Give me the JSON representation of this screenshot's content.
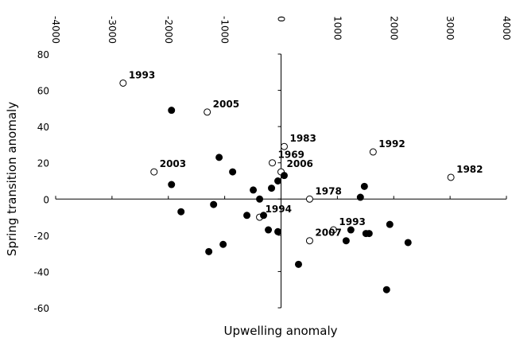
{
  "chart_data": {
    "type": "scatter",
    "x_label": "Upwelling anomaly",
    "y_label": "Spring transition anomaly",
    "xlim": [
      -4000,
      4000
    ],
    "xticks": [
      -4000,
      -3000,
      -2000,
      -1000,
      0,
      1000,
      2000,
      3000,
      4000
    ],
    "ylim": [
      -60,
      80
    ],
    "yticks": [
      -60,
      -40,
      -20,
      0,
      20,
      40,
      60,
      80
    ],
    "series": [
      {
        "marker": "open",
        "color": "#000000",
        "x": [
          -2803,
          -1310,
          -2254,
          -155,
          56,
          0,
          507,
          1634,
          3014,
          -380,
          930,
          507
        ],
        "values": [
          64,
          48,
          15,
          20,
          29,
          15,
          0,
          26,
          12,
          -10,
          -17,
          -23
        ],
        "labels": [
          "1993",
          "2005",
          "2003",
          "1969",
          "1983",
          "2006",
          "1978",
          "1992",
          "1982",
          "1994",
          "1993",
          "2007"
        ]
      },
      {
        "marker": "filled",
        "color": "#000000",
        "x": [
          -1944,
          -1944,
          -1775,
          -1099,
          -1197,
          -859,
          -493,
          -606,
          -380,
          -310,
          -225,
          -169,
          -56,
          -56,
          56,
          -1282,
          -1028,
          310,
          1155,
          1239,
          1408,
          1479,
          1507,
          1563,
          1930,
          2254,
          1873
        ],
        "values": [
          49,
          8,
          -7,
          23,
          -3,
          15,
          5,
          -9,
          0,
          -9,
          -17,
          6,
          10,
          -18,
          13,
          -29,
          -25,
          -36,
          -23,
          -17,
          1,
          7,
          -19,
          -19,
          -14,
          -24,
          -50
        ]
      }
    ]
  }
}
